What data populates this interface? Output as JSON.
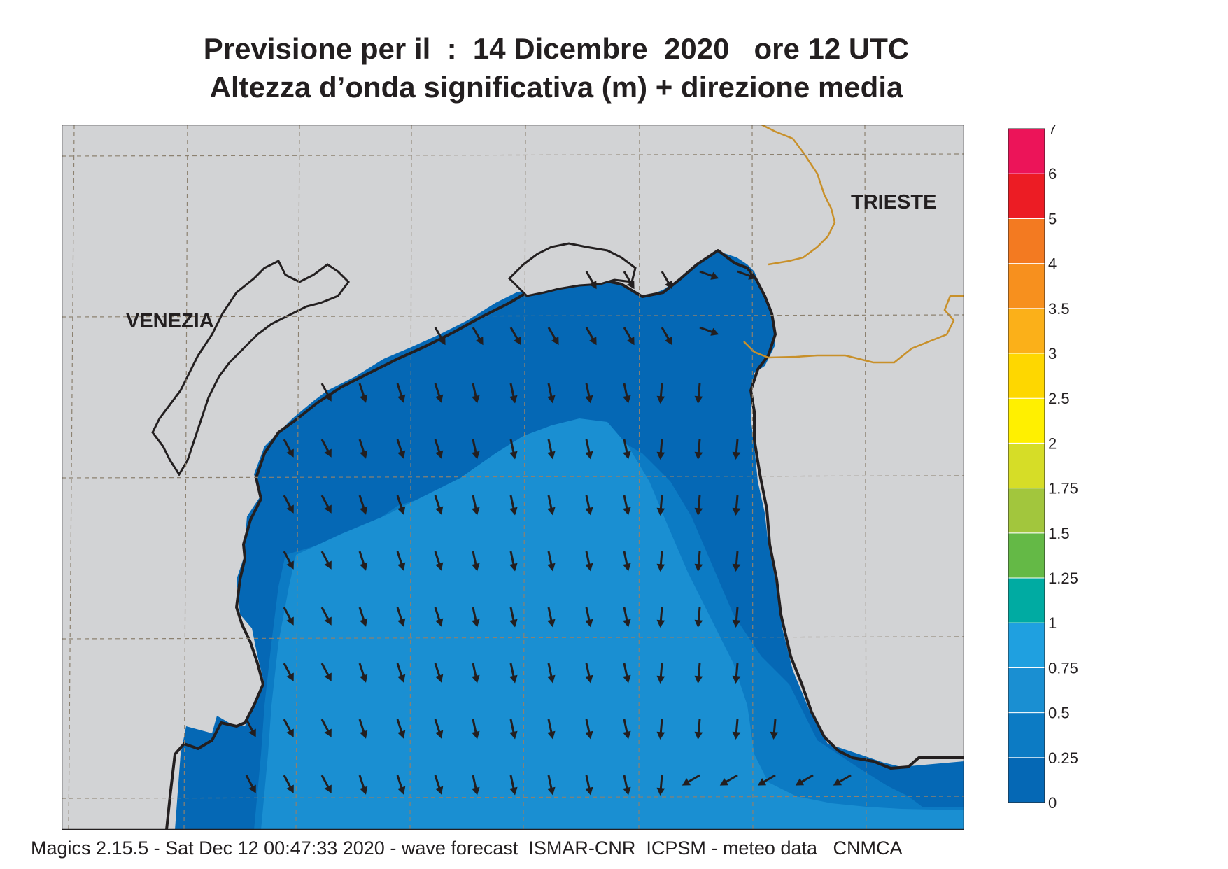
{
  "title_line1": "Previsione per il  :  14 Dicembre  2020   ore 12 UTC",
  "title_line2": "Altezza d’onda significativa (m) + direzione media",
  "cities": {
    "venezia": "VENEZIA",
    "trieste": "TRIESTE"
  },
  "legend": {
    "labels": [
      "0",
      "0.25",
      "0.5",
      "0.75",
      "1",
      "1.25",
      "1.5",
      "1.75",
      "2",
      "2.5",
      "3",
      "3.5",
      "4",
      "5",
      "6",
      "7"
    ],
    "colors": [
      "#0568b5",
      "#0c7bc4",
      "#1a8fd2",
      "#1fa0e0",
      "#00aba2",
      "#64b946",
      "#a2c63d",
      "#d6dd27",
      "#fff000",
      "#fed700",
      "#fbb019",
      "#f7901e",
      "#f37a21",
      "#ec1c24",
      "#ec1459"
    ]
  },
  "colors": {
    "land": "#d2d3d5",
    "sea_band_0": "#0568b5",
    "sea_band_025": "#0c7bc4",
    "sea_band_05": "#1a8fd2",
    "border": "#c8902a",
    "grid": "#8c8170"
  },
  "footer": "Magics 2.15.5 - Sat Dec 12 00:47:33 2020 - wave forecast  ISMAR-CNR  ICPSM - meteo data   CNMCA"
}
